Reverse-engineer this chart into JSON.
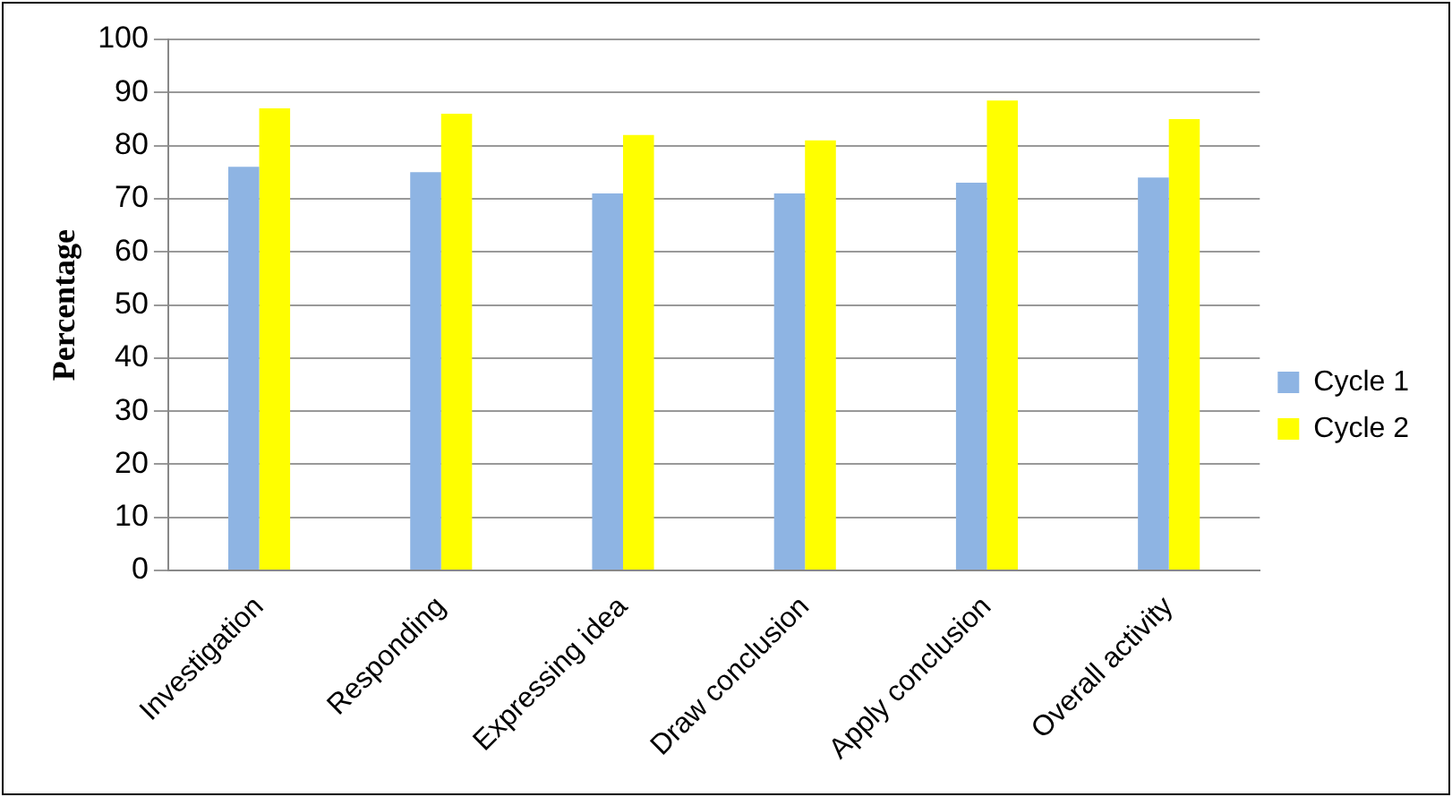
{
  "chart_data": {
    "type": "bar",
    "ylabel": "Percentage",
    "categories": [
      "Investigation",
      "Responding",
      "Expressing idea",
      "Draw conclusion",
      "Apply conclusion",
      "Overall activity"
    ],
    "series": [
      {
        "name": "Cycle 1",
        "color": "#8eb4e3",
        "values": [
          76,
          75,
          71,
          71,
          73,
          74
        ]
      },
      {
        "name": "Cycle 2",
        "color": "#ffff00",
        "values": [
          87,
          86,
          82,
          81,
          88.5,
          85
        ]
      }
    ],
    "ylim": [
      0,
      100
    ],
    "yticks": [
      0,
      10,
      20,
      30,
      40,
      50,
      60,
      70,
      80,
      90,
      100
    ],
    "grid": "y",
    "legend": "right"
  }
}
